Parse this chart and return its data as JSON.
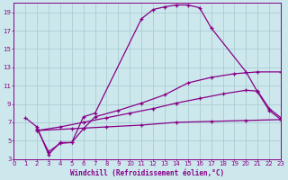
{
  "xlabel": "Windchill (Refroidissement éolien,°C)",
  "bg_color": "#cce8ec",
  "grid_color": "#aacdd4",
  "line_color": "#880088",
  "xlim": [
    0,
    23
  ],
  "ylim": [
    3,
    20
  ],
  "xticks": [
    0,
    1,
    2,
    3,
    4,
    5,
    6,
    7,
    8,
    9,
    10,
    11,
    12,
    13,
    14,
    15,
    16,
    17,
    18,
    19,
    20,
    21,
    22,
    23
  ],
  "yticks": [
    3,
    5,
    7,
    9,
    11,
    13,
    15,
    17,
    19
  ],
  "curves": [
    {
      "x": [
        1,
        2,
        3,
        4,
        5,
        6,
        7,
        11,
        12,
        13,
        14,
        15,
        16,
        17,
        20,
        21,
        22,
        23
      ],
      "y": [
        7.5,
        6.5,
        3.5,
        4.8,
        4.8,
        7.6,
        8.0,
        18.3,
        19.3,
        19.6,
        19.8,
        19.8,
        19.5,
        17.3,
        12.5,
        10.3,
        8.3,
        7.3
      ]
    },
    {
      "x": [
        2,
        3,
        4,
        5,
        6,
        7,
        9,
        11,
        13,
        15,
        17,
        19,
        21,
        23
      ],
      "y": [
        6.3,
        3.8,
        4.7,
        4.8,
        6.3,
        7.6,
        8.3,
        9.1,
        10.0,
        11.3,
        11.9,
        12.3,
        12.5,
        12.5
      ]
    },
    {
      "x": [
        2,
        4,
        6,
        8,
        10,
        12,
        14,
        16,
        18,
        20,
        21,
        22,
        23
      ],
      "y": [
        6.1,
        6.5,
        7.0,
        7.5,
        8.0,
        8.5,
        9.1,
        9.6,
        10.1,
        10.5,
        10.4,
        8.5,
        7.5
      ]
    },
    {
      "x": [
        2,
        5,
        8,
        11,
        14,
        17,
        20,
        23
      ],
      "y": [
        6.1,
        6.3,
        6.5,
        6.7,
        7.0,
        7.1,
        7.2,
        7.3
      ]
    }
  ]
}
